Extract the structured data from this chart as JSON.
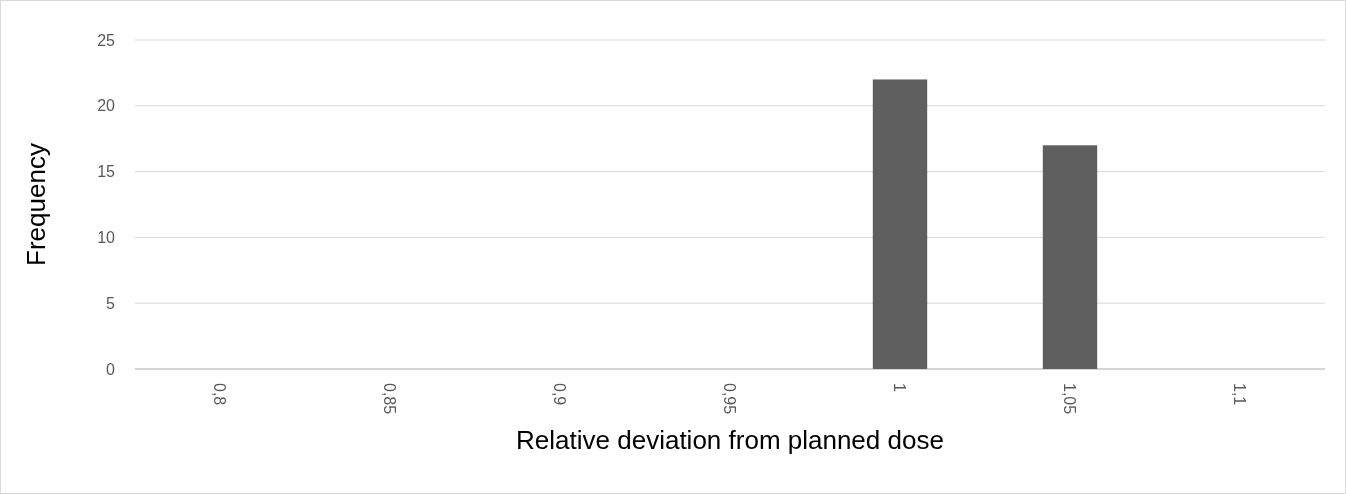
{
  "chart_data": {
    "type": "bar",
    "xlabel": "Relative deviation from planned dose",
    "ylabel": "Frequency",
    "categories": [
      "0,8",
      "0,85",
      "0,9",
      "0,95",
      "1",
      "1,05",
      "1,1"
    ],
    "values": [
      0,
      0,
      0,
      0,
      22,
      17,
      0
    ],
    "color": "#5f5f5f",
    "ylim": [
      0,
      25
    ],
    "yticks": [
      0,
      5,
      10,
      15,
      20,
      25
    ],
    "grid": "y"
  }
}
